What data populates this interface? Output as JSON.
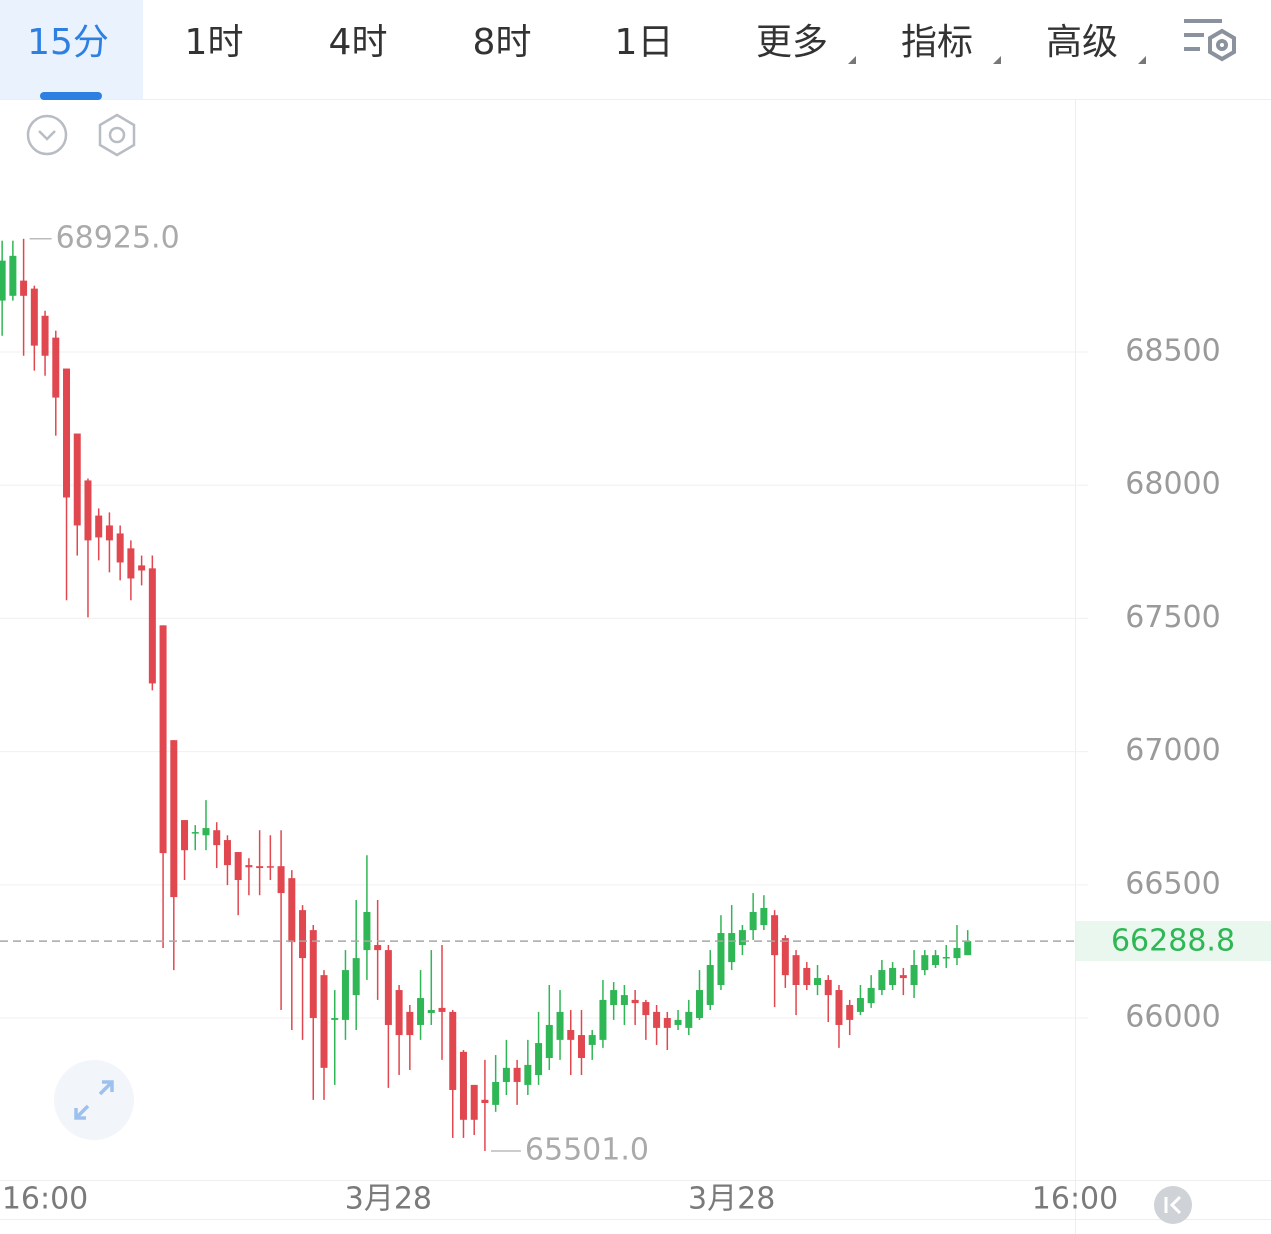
{
  "tabs": [
    "15分",
    "1时",
    "4时",
    "8时",
    "1日",
    "更多",
    "指标",
    "高级"
  ],
  "active_tab": 0,
  "chart_data": {
    "type": "candlestick",
    "up_color": "#2fb655",
    "down_color": "#e0474f",
    "open": [
      68693,
      68711,
      68768,
      68738,
      68636,
      68554,
      68438,
      68194,
      68018,
      67886,
      67849,
      67819,
      67763,
      67699,
      67688,
      67474,
      67043,
      66743,
      66694,
      66686,
      66705,
      66668,
      66623,
      66574,
      66570,
      66570,
      66570,
      66525,
      66405,
      66330,
      66161,
      65993,
      65993,
      66086,
      66255,
      66274,
      66255,
      66105,
      66023,
      65974,
      66019,
      66038,
      66023,
      65873,
      65749,
      65693,
      65674,
      65760,
      65813,
      65749,
      65786,
      65850,
      65918,
      65955,
      65936,
      65899,
      65918,
      66049,
      66049,
      66068,
      66060,
      66023,
      66000,
      65974,
      65963,
      66000,
      66049,
      66124,
      66210,
      66274,
      66330,
      66349,
      66386,
      66300,
      66236,
      66188,
      66124,
      66143,
      66105,
      66049,
      66023,
      66056,
      66105,
      66124,
      66161,
      66124,
      66180,
      66199,
      66225,
      66225,
      66236
    ],
    "high": [
      68918,
      68918,
      68925,
      68749,
      68655,
      68580,
      68438,
      68194,
      68025,
      67913,
      67898,
      67849,
      67793,
      67736,
      67736,
      67474,
      67043,
      66743,
      66724,
      66818,
      66735,
      66686,
      66623,
      66600,
      66705,
      66686,
      66705,
      66555,
      66424,
      66349,
      66180,
      66105,
      66255,
      66443,
      66611,
      66443,
      66274,
      66124,
      66049,
      66180,
      66255,
      66274,
      66030,
      65880,
      65749,
      65843,
      65861,
      65918,
      65843,
      65918,
      66023,
      66124,
      66105,
      66030,
      66030,
      65955,
      66143,
      66135,
      66124,
      66105,
      66068,
      66049,
      66023,
      66030,
      66068,
      66180,
      66255,
      66386,
      66424,
      66349,
      66469,
      66461,
      66405,
      66311,
      66255,
      66210,
      66199,
      66161,
      66124,
      66068,
      66124,
      66161,
      66218,
      66210,
      66188,
      66255,
      66255,
      66255,
      66274,
      66349,
      66330
    ],
    "low": [
      68561,
      68693,
      68486,
      68430,
      68411,
      68186,
      67568,
      67736,
      67504,
      67718,
      67673,
      67643,
      67568,
      67624,
      67230,
      66263,
      66180,
      66518,
      66630,
      66630,
      66563,
      66499,
      66386,
      66461,
      66461,
      66518,
      66030,
      65955,
      65918,
      65693,
      65693,
      65749,
      65918,
      65955,
      66143,
      66068,
      65738,
      65786,
      65805,
      65918,
      65974,
      65843,
      65550,
      65550,
      65561,
      65501,
      65648,
      65711,
      65674,
      65711,
      65749,
      65805,
      65843,
      65786,
      65786,
      65843,
      65888,
      65993,
      65974,
      65974,
      65918,
      65899,
      65880,
      65955,
      65936,
      65993,
      66030,
      66105,
      66180,
      66236,
      66293,
      66330,
      66041,
      66113,
      66011,
      66105,
      66086,
      65985,
      65888,
      65936,
      66011,
      66038,
      66086,
      66105,
      66086,
      66075,
      66161,
      66188,
      66188,
      66199,
      66236
    ],
    "close": [
      68843,
      68861,
      68711,
      68524,
      68486,
      68329,
      67954,
      67849,
      67793,
      67804,
      67793,
      67710,
      67650,
      67680,
      67256,
      66619,
      66454,
      66630,
      66698,
      66713,
      66649,
      66574,
      66518,
      66566,
      66563,
      66566,
      66469,
      66285,
      66225,
      66000,
      65813,
      66000,
      66180,
      66225,
      66398,
      66255,
      65974,
      65936,
      65936,
      66075,
      66030,
      66023,
      65730,
      65618,
      65618,
      65681,
      65760,
      65813,
      65760,
      65824,
      65906,
      65974,
      66023,
      65918,
      65850,
      65936,
      66068,
      66105,
      66086,
      66056,
      66011,
      65963,
      65963,
      65993,
      66023,
      66105,
      66199,
      66319,
      66319,
      66330,
      66398,
      66413,
      66236,
      66161,
      66124,
      66124,
      66150,
      66086,
      65974,
      65993,
      66075,
      66113,
      66180,
      66188,
      66150,
      66199,
      66236,
      66236,
      66229,
      66263,
      66288.8
    ],
    "ylim": [
      65392,
      69446
    ],
    "yticks": [
      66000,
      66500,
      67000,
      67500,
      68000,
      68500
    ],
    "grid": true,
    "xlim": [
      -0.2,
      100
    ],
    "xticks": [
      {
        "value": 4,
        "label": "16:00"
      },
      {
        "value": 36,
        "label": "3月28"
      },
      {
        "value": 68,
        "label": "3月28"
      },
      {
        "value": 100,
        "label": "16:00"
      }
    ],
    "last_price": {
      "value": 66288.8,
      "label": "66288.8"
    },
    "max_label": {
      "value": 68925,
      "label": "68925.0"
    },
    "min_label": {
      "value": 65501,
      "label": "65501.0"
    }
  }
}
